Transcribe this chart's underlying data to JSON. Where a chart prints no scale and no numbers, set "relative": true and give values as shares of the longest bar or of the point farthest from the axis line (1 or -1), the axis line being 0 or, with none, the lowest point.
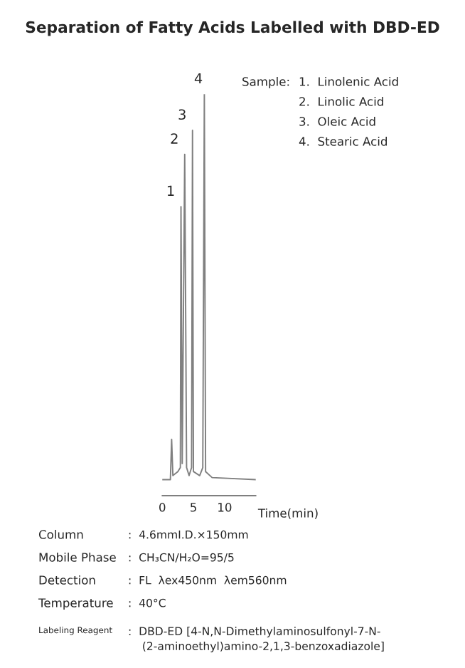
{
  "chart_data": {
    "type": "line",
    "title": "Separation of Fatty Acids Labelled with DBD-ED",
    "xlabel": "Time(min)",
    "relative": true,
    "x": [
      0,
      1.3,
      1.5,
      1.7,
      2.5,
      2.9,
      3.0,
      3.2,
      3.6,
      3.9,
      4.3,
      4.7,
      4.85,
      5.0,
      6.0,
      6.5,
      6.75,
      6.95,
      8,
      15
    ],
    "series": [
      {
        "color": "#808080",
        "values": [
          0.04,
          0.04,
          0.14,
          0.05,
          0.06,
          0.07,
          0.72,
          0.08,
          0.85,
          0.07,
          0.05,
          0.07,
          0.91,
          0.06,
          0.05,
          0.07,
          1.0,
          0.06,
          0.045,
          0.04
        ]
      }
    ],
    "xlim": [
      0,
      15
    ],
    "xticks": [
      0,
      5,
      10
    ],
    "tick_labels": "x",
    "grid": false,
    "legend": false,
    "marker": "none",
    "line_style": "solid",
    "annotations": [
      {
        "text": "1",
        "x": 3.0,
        "y": 0.72
      },
      {
        "text": "2",
        "x": 3.6,
        "y": 0.85
      },
      {
        "text": "3",
        "x": 4.85,
        "y": 0.91
      },
      {
        "text": "4",
        "x": 6.75,
        "y": 1.0
      },
      "Sample:",
      "1.  Linolenic Acid",
      "2.  Linolic Acid",
      "3.  Oleic Acid",
      "4.  Stearic Acid",
      "Column",
      ":  4.6mmI.D.×150mm",
      "Mobile Phase",
      ":  CH₃CN/H₂O=95/5",
      "Detection",
      ":  FL  λex450nm  λem560nm",
      "Temperature",
      ":  40°C",
      "Labeling Reagent",
      ":  DBD-ED [4-N,N-Dimethylaminosulfonyl-7-N-\n    (2-aminoethyl)amino-2,1,3-benzoxadiazole]"
    ]
  }
}
